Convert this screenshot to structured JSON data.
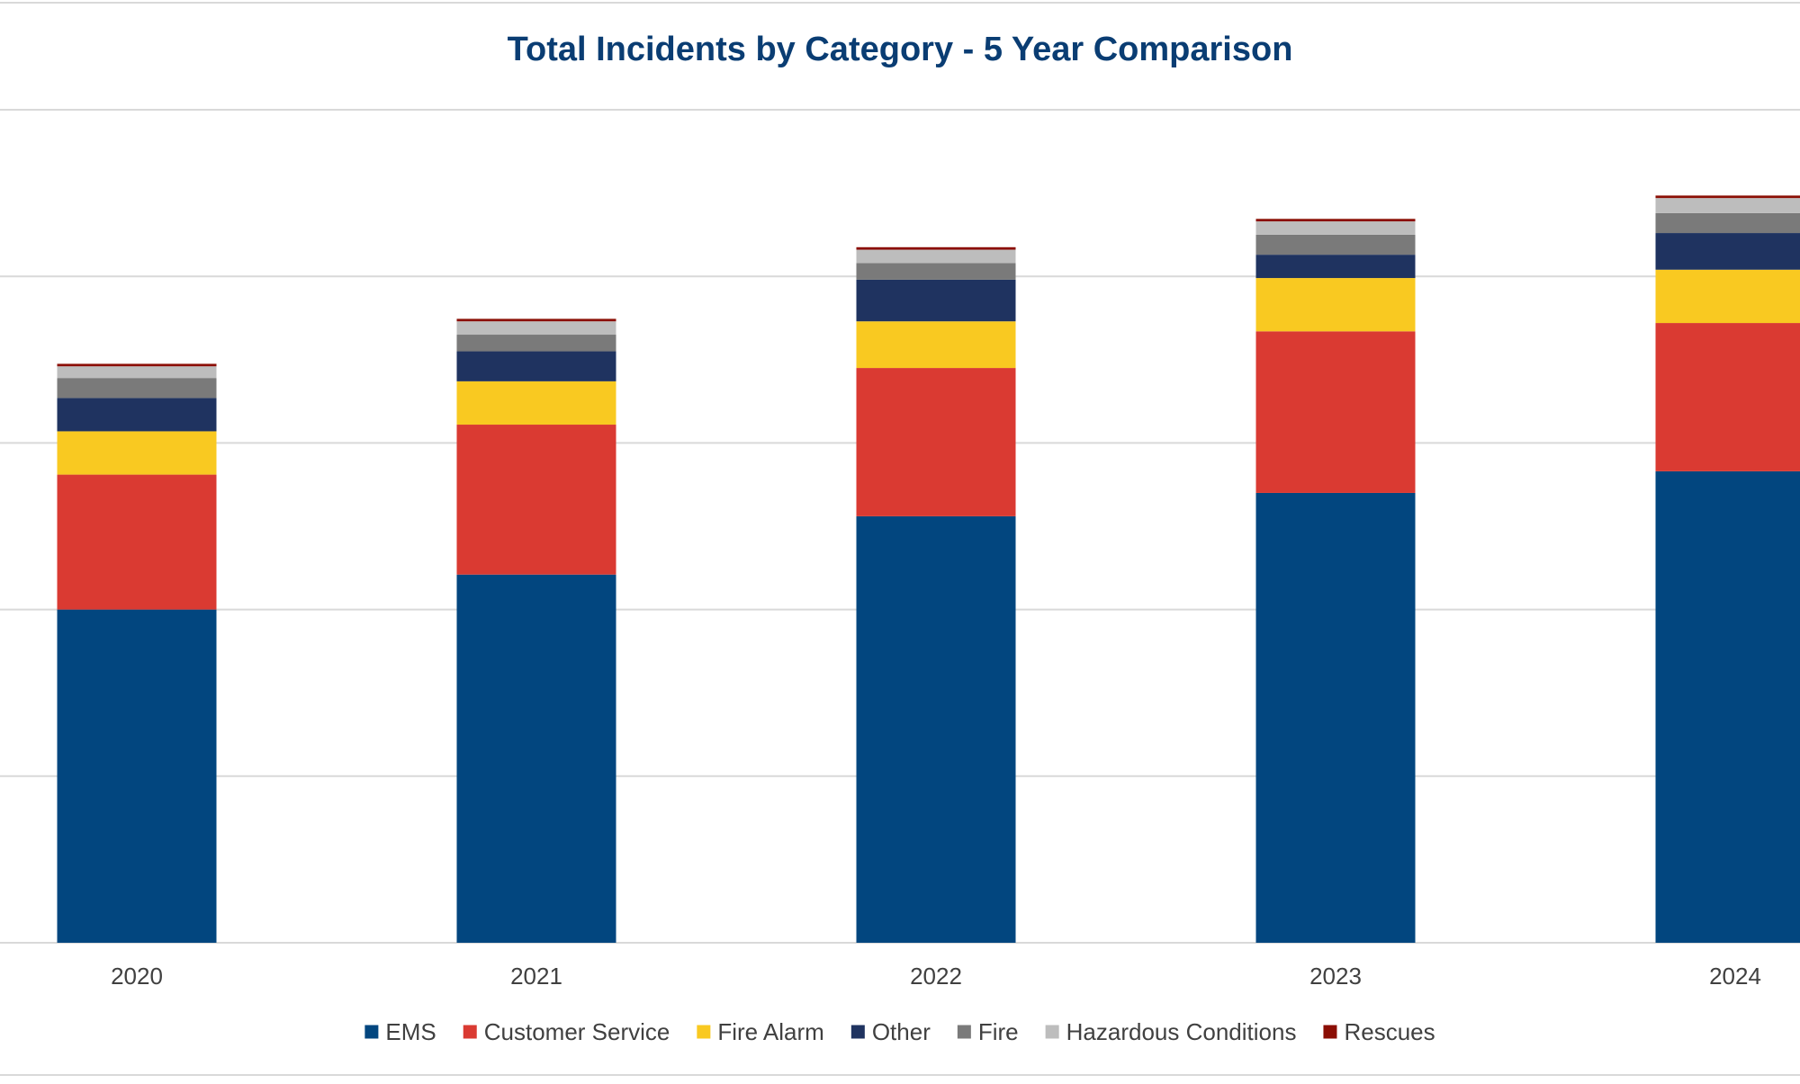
{
  "chart_data": {
    "type": "bar",
    "stacked": true,
    "title": "Total Incidents by Category - 5 Year Comparison",
    "xlabel": "",
    "ylabel": "",
    "categories": [
      "2020",
      "2021",
      "2022",
      "2023",
      "2024"
    ],
    "ylim": [
      0,
      5
    ],
    "grid": true,
    "legend": "bottom",
    "series": [
      {
        "name": "EMS",
        "color": "#02467F",
        "values": [
          2.0,
          2.21,
          2.56,
          2.7,
          2.83
        ]
      },
      {
        "name": "Customer Service",
        "color": "#DA3A32",
        "values": [
          0.81,
          0.9,
          0.89,
          0.97,
          0.89
        ]
      },
      {
        "name": "Fire Alarm",
        "color": "#F9C921",
        "values": [
          0.26,
          0.26,
          0.28,
          0.32,
          0.32
        ]
      },
      {
        "name": "Other",
        "color": "#1F3360",
        "values": [
          0.2,
          0.18,
          0.25,
          0.14,
          0.22
        ]
      },
      {
        "name": "Fire",
        "color": "#7A7A7A",
        "values": [
          0.12,
          0.1,
          0.1,
          0.12,
          0.12
        ]
      },
      {
        "name": "Hazardous Conditions",
        "color": "#BDBDBD",
        "values": [
          0.07,
          0.08,
          0.08,
          0.08,
          0.09
        ]
      },
      {
        "name": "Rescues",
        "color": "#8B0E04",
        "values": [
          0.015,
          0.015,
          0.015,
          0.015,
          0.015
        ]
      }
    ]
  },
  "colors": {
    "title": "#0A3D73",
    "gridline": "#D9D9D9",
    "axis_text": "#404040"
  }
}
